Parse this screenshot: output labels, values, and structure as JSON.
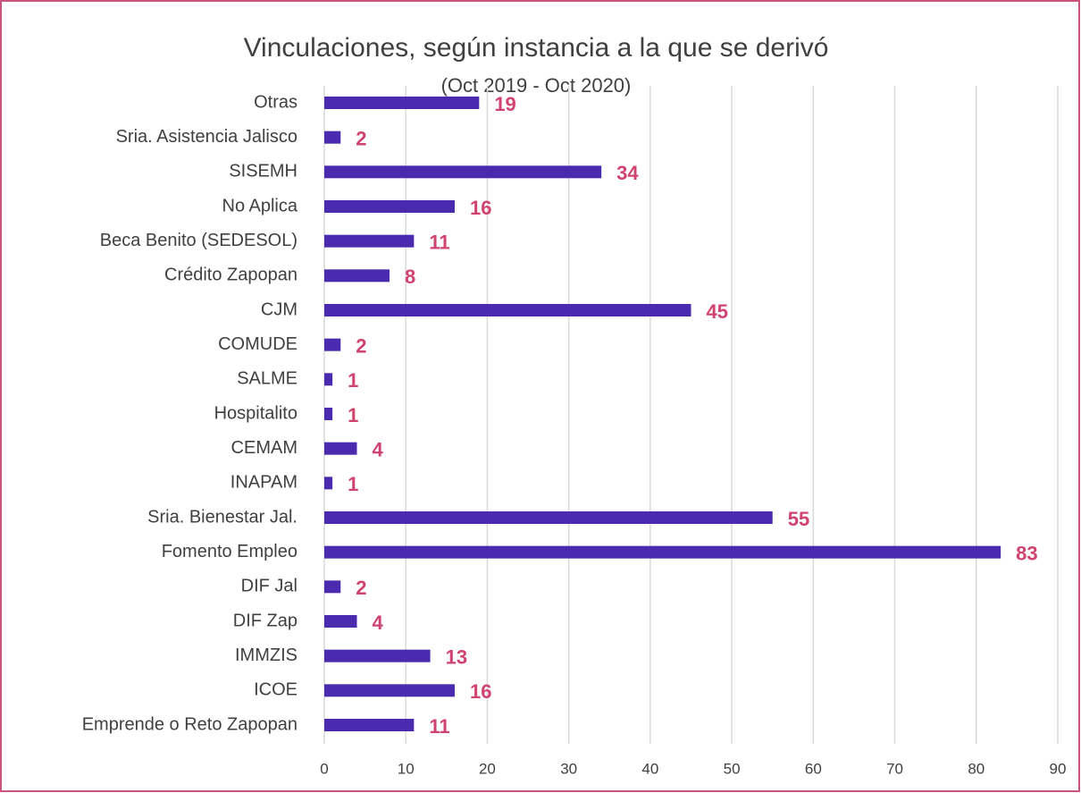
{
  "chart_data": {
    "type": "barh",
    "title": "Vinculaciones, según instancia a la que se derivó",
    "subtitle": "(Oct 2019 - Oct 2020)",
    "categories": [
      "Otras",
      "Sria. Asistencia Jalisco",
      "SISEMH",
      "No Aplica",
      "Beca Benito (SEDESOL)",
      "Crédito Zapopan",
      "CJM",
      "COMUDE",
      "SALME",
      "Hospitalito",
      "CEMAM",
      "INAPAM",
      "Sria. Bienestar Jal.",
      "Fomento Empleo",
      "DIF Jal",
      "DIF Zap",
      "IMMZIS",
      "ICOE",
      "Emprende o Reto Zapopan"
    ],
    "values": [
      19,
      2,
      34,
      16,
      11,
      8,
      45,
      2,
      1,
      1,
      4,
      1,
      55,
      83,
      2,
      4,
      13,
      16,
      11
    ],
    "color": "#4a2aae",
    "label_color": "#d0436f",
    "xlim": [
      0,
      90
    ],
    "xticks": [
      0,
      10,
      20,
      30,
      40,
      50,
      60,
      70,
      80,
      90
    ],
    "grid": true
  }
}
